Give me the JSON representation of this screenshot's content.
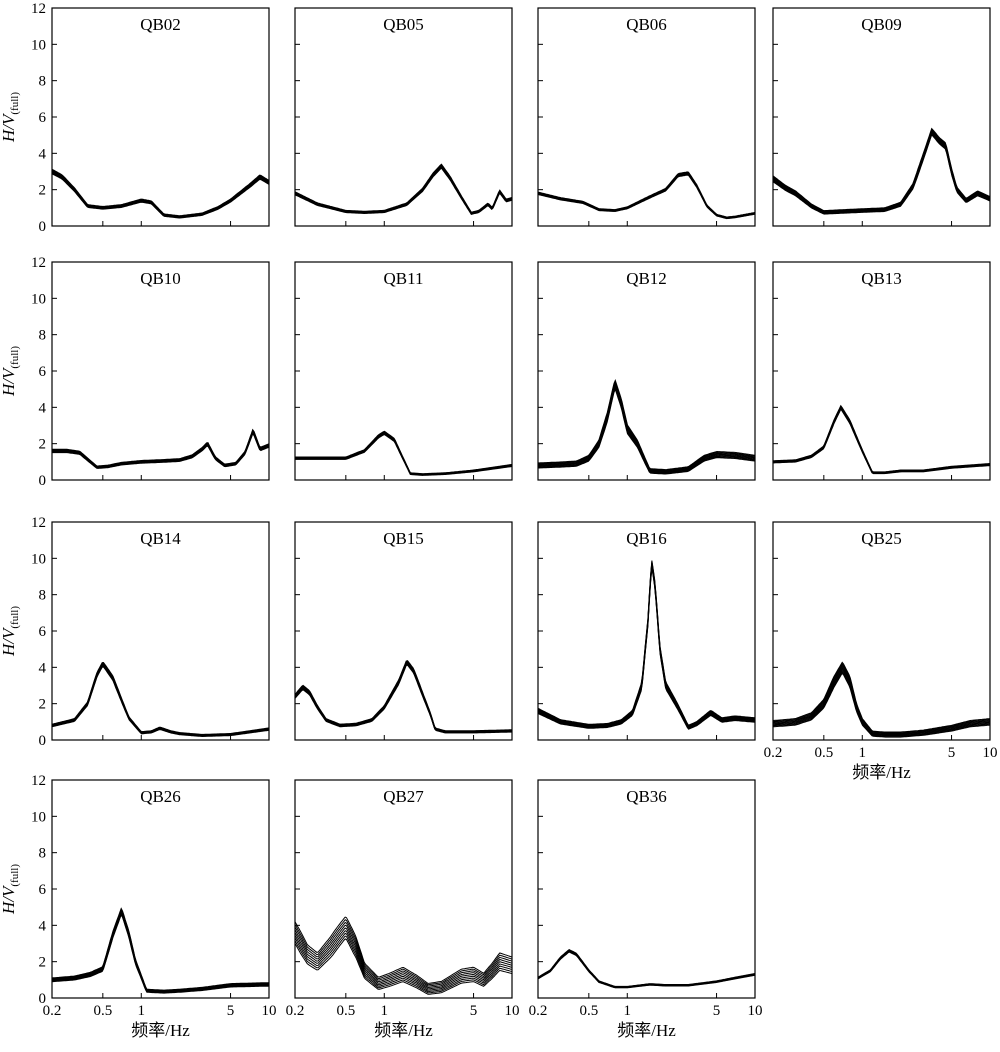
{
  "chart_data": {
    "type": "line",
    "figure": {
      "x_label": "频率/Hz",
      "y_label_main": "H/V",
      "y_label_sub": "(full)",
      "x_scale": "log",
      "xlim": [
        0.2,
        10
      ],
      "ylim": [
        0,
        12
      ],
      "x_ticks": [
        0.2,
        0.5,
        1,
        5,
        10
      ],
      "x_tick_labels": [
        "0.2",
        "0.5",
        "1",
        "5",
        "10"
      ],
      "y_ticks": [
        0,
        2,
        4,
        6,
        8,
        10,
        12
      ],
      "y_tick_labels": [
        "0",
        "2",
        "4",
        "6",
        "8",
        "10",
        "12"
      ],
      "grid": false
    },
    "panels": [
      {
        "name": "QB02",
        "curve": [
          [
            0.2,
            3.0
          ],
          [
            0.24,
            2.7
          ],
          [
            0.3,
            2.0
          ],
          [
            0.38,
            1.1
          ],
          [
            0.5,
            1.0
          ],
          [
            0.7,
            1.1
          ],
          [
            1.0,
            1.4
          ],
          [
            1.2,
            1.3
          ],
          [
            1.5,
            0.6
          ],
          [
            2.0,
            0.5
          ],
          [
            3.0,
            0.65
          ],
          [
            4.0,
            1.0
          ],
          [
            5.0,
            1.4
          ],
          [
            7.0,
            2.2
          ],
          [
            8.5,
            2.7
          ],
          [
            10,
            2.4
          ]
        ],
        "spread": 0.25
      },
      {
        "name": "QB05",
        "curve": [
          [
            0.2,
            1.8
          ],
          [
            0.3,
            1.2
          ],
          [
            0.5,
            0.8
          ],
          [
            0.7,
            0.75
          ],
          [
            1.0,
            0.8
          ],
          [
            1.5,
            1.2
          ],
          [
            2.0,
            2.0
          ],
          [
            2.4,
            2.8
          ],
          [
            2.8,
            3.3
          ],
          [
            3.3,
            2.6
          ],
          [
            4.0,
            1.6
          ],
          [
            4.8,
            0.7
          ],
          [
            5.5,
            0.8
          ],
          [
            6.5,
            1.2
          ],
          [
            7.0,
            0.95
          ],
          [
            8.0,
            1.9
          ],
          [
            9.0,
            1.4
          ],
          [
            10,
            1.5
          ]
        ],
        "spread": 0.22
      },
      {
        "name": "QB06",
        "curve": [
          [
            0.2,
            1.8
          ],
          [
            0.3,
            1.5
          ],
          [
            0.45,
            1.3
          ],
          [
            0.6,
            0.9
          ],
          [
            0.8,
            0.85
          ],
          [
            1.0,
            1.0
          ],
          [
            1.5,
            1.6
          ],
          [
            2.0,
            2.0
          ],
          [
            2.5,
            2.8
          ],
          [
            3.0,
            2.9
          ],
          [
            3.5,
            2.2
          ],
          [
            4.2,
            1.1
          ],
          [
            5.0,
            0.6
          ],
          [
            6.0,
            0.45
          ],
          [
            7.0,
            0.5
          ],
          [
            10,
            0.7
          ]
        ],
        "spread": 0.18
      },
      {
        "name": "QB09",
        "curve": [
          [
            0.2,
            2.6
          ],
          [
            0.25,
            2.1
          ],
          [
            0.3,
            1.8
          ],
          [
            0.4,
            1.1
          ],
          [
            0.5,
            0.75
          ],
          [
            0.7,
            0.8
          ],
          [
            1.0,
            0.85
          ],
          [
            1.5,
            0.9
          ],
          [
            2.0,
            1.2
          ],
          [
            2.5,
            2.2
          ],
          [
            3.0,
            3.8
          ],
          [
            3.5,
            5.2
          ],
          [
            4.0,
            4.7
          ],
          [
            4.5,
            4.4
          ],
          [
            5.0,
            3.0
          ],
          [
            5.5,
            2.0
          ],
          [
            6.5,
            1.4
          ],
          [
            8.0,
            1.8
          ],
          [
            10,
            1.5
          ]
        ],
        "spread": 0.35
      },
      {
        "name": "QB10",
        "curve": [
          [
            0.2,
            1.6
          ],
          [
            0.26,
            1.6
          ],
          [
            0.33,
            1.5
          ],
          [
            0.4,
            1.0
          ],
          [
            0.45,
            0.7
          ],
          [
            0.55,
            0.75
          ],
          [
            0.7,
            0.9
          ],
          [
            1.0,
            1.0
          ],
          [
            1.5,
            1.05
          ],
          [
            2.0,
            1.1
          ],
          [
            2.5,
            1.3
          ],
          [
            3.0,
            1.7
          ],
          [
            3.3,
            2.0
          ],
          [
            3.8,
            1.2
          ],
          [
            4.5,
            0.8
          ],
          [
            5.5,
            0.9
          ],
          [
            6.5,
            1.5
          ],
          [
            7.5,
            2.7
          ],
          [
            8.5,
            1.7
          ],
          [
            10,
            1.9
          ]
        ],
        "spread": 0.25
      },
      {
        "name": "QB11",
        "curve": [
          [
            0.2,
            1.2
          ],
          [
            0.3,
            1.2
          ],
          [
            0.5,
            1.2
          ],
          [
            0.7,
            1.6
          ],
          [
            0.9,
            2.4
          ],
          [
            1.0,
            2.6
          ],
          [
            1.2,
            2.2
          ],
          [
            1.4,
            1.2
          ],
          [
            1.6,
            0.35
          ],
          [
            2.0,
            0.3
          ],
          [
            3.0,
            0.35
          ],
          [
            5.0,
            0.5
          ],
          [
            10,
            0.8
          ]
        ],
        "spread": 0.2
      },
      {
        "name": "QB12",
        "curve": [
          [
            0.2,
            0.8
          ],
          [
            0.3,
            0.85
          ],
          [
            0.4,
            0.9
          ],
          [
            0.5,
            1.2
          ],
          [
            0.6,
            2.0
          ],
          [
            0.7,
            3.5
          ],
          [
            0.8,
            5.3
          ],
          [
            0.9,
            4.2
          ],
          [
            1.0,
            2.8
          ],
          [
            1.2,
            2.0
          ],
          [
            1.35,
            1.2
          ],
          [
            1.5,
            0.5
          ],
          [
            2.0,
            0.45
          ],
          [
            3.0,
            0.6
          ],
          [
            4.0,
            1.2
          ],
          [
            5.0,
            1.4
          ],
          [
            7.0,
            1.35
          ],
          [
            10,
            1.2
          ]
        ],
        "spread": 0.5
      },
      {
        "name": "QB13",
        "curve": [
          [
            0.2,
            1.0
          ],
          [
            0.3,
            1.05
          ],
          [
            0.4,
            1.3
          ],
          [
            0.5,
            1.8
          ],
          [
            0.6,
            3.2
          ],
          [
            0.68,
            4.0
          ],
          [
            0.8,
            3.2
          ],
          [
            1.0,
            1.6
          ],
          [
            1.2,
            0.4
          ],
          [
            1.5,
            0.4
          ],
          [
            2.0,
            0.5
          ],
          [
            3.0,
            0.5
          ],
          [
            5.0,
            0.7
          ],
          [
            10,
            0.85
          ]
        ],
        "spread": 0.2
      },
      {
        "name": "QB14",
        "curve": [
          [
            0.2,
            0.8
          ],
          [
            0.3,
            1.1
          ],
          [
            0.38,
            2.0
          ],
          [
            0.45,
            3.6
          ],
          [
            0.5,
            4.2
          ],
          [
            0.6,
            3.4
          ],
          [
            0.7,
            2.2
          ],
          [
            0.8,
            1.2
          ],
          [
            1.0,
            0.4
          ],
          [
            1.2,
            0.45
          ],
          [
            1.4,
            0.65
          ],
          [
            1.7,
            0.45
          ],
          [
            2.0,
            0.35
          ],
          [
            3.0,
            0.25
          ],
          [
            5.0,
            0.3
          ],
          [
            10,
            0.6
          ]
        ],
        "spread": 0.25
      },
      {
        "name": "QB15",
        "curve": [
          [
            0.2,
            2.4
          ],
          [
            0.23,
            2.9
          ],
          [
            0.26,
            2.6
          ],
          [
            0.3,
            1.8
          ],
          [
            0.35,
            1.1
          ],
          [
            0.45,
            0.8
          ],
          [
            0.6,
            0.85
          ],
          [
            0.8,
            1.1
          ],
          [
            1.0,
            1.8
          ],
          [
            1.3,
            3.2
          ],
          [
            1.5,
            4.3
          ],
          [
            1.7,
            3.8
          ],
          [
            2.0,
            2.5
          ],
          [
            2.3,
            1.4
          ],
          [
            2.5,
            0.6
          ],
          [
            3.0,
            0.45
          ],
          [
            5.0,
            0.45
          ],
          [
            10,
            0.5
          ]
        ],
        "spread": 0.25
      },
      {
        "name": "QB16",
        "curve": [
          [
            0.2,
            1.6
          ],
          [
            0.3,
            1.0
          ],
          [
            0.5,
            0.75
          ],
          [
            0.7,
            0.8
          ],
          [
            0.9,
            1.0
          ],
          [
            1.1,
            1.5
          ],
          [
            1.3,
            3.0
          ],
          [
            1.45,
            6.5
          ],
          [
            1.55,
            9.8
          ],
          [
            1.65,
            8.5
          ],
          [
            1.8,
            5.0
          ],
          [
            2.0,
            3.0
          ],
          [
            2.5,
            1.8
          ],
          [
            3.0,
            0.7
          ],
          [
            3.5,
            0.9
          ],
          [
            4.5,
            1.5
          ],
          [
            5.5,
            1.1
          ],
          [
            7.0,
            1.2
          ],
          [
            10,
            1.1
          ]
        ],
        "spread": 0.4
      },
      {
        "name": "QB25",
        "curve": [
          [
            0.2,
            0.9
          ],
          [
            0.25,
            0.95
          ],
          [
            0.3,
            1.0
          ],
          [
            0.4,
            1.3
          ],
          [
            0.5,
            2.0
          ],
          [
            0.6,
            3.2
          ],
          [
            0.7,
            4.0
          ],
          [
            0.8,
            3.2
          ],
          [
            0.9,
            1.8
          ],
          [
            1.0,
            1.0
          ],
          [
            1.2,
            0.35
          ],
          [
            1.5,
            0.3
          ],
          [
            2.0,
            0.3
          ],
          [
            3.0,
            0.4
          ],
          [
            5.0,
            0.65
          ],
          [
            7.0,
            0.9
          ],
          [
            10,
            1.0
          ]
        ],
        "spread": 0.6
      },
      {
        "name": "QB26",
        "curve": [
          [
            0.2,
            1.0
          ],
          [
            0.3,
            1.1
          ],
          [
            0.4,
            1.3
          ],
          [
            0.5,
            1.6
          ],
          [
            0.6,
            3.5
          ],
          [
            0.7,
            4.8
          ],
          [
            0.8,
            3.5
          ],
          [
            0.9,
            2.0
          ],
          [
            1.1,
            0.4
          ],
          [
            1.5,
            0.35
          ],
          [
            2.0,
            0.4
          ],
          [
            3.0,
            0.5
          ],
          [
            5.0,
            0.7
          ],
          [
            10,
            0.75
          ]
        ],
        "spread": 0.35
      },
      {
        "name": "QB27",
        "curve": [
          [
            0.2,
            3.6
          ],
          [
            0.25,
            2.4
          ],
          [
            0.3,
            2.0
          ],
          [
            0.38,
            2.8
          ],
          [
            0.45,
            3.5
          ],
          [
            0.5,
            3.9
          ],
          [
            0.6,
            2.8
          ],
          [
            0.7,
            1.5
          ],
          [
            0.9,
            0.8
          ],
          [
            1.1,
            1.0
          ],
          [
            1.4,
            1.3
          ],
          [
            1.8,
            0.9
          ],
          [
            2.2,
            0.5
          ],
          [
            2.8,
            0.6
          ],
          [
            4.0,
            1.2
          ],
          [
            5.0,
            1.3
          ],
          [
            6.0,
            1.0
          ],
          [
            7.0,
            1.5
          ],
          [
            8.0,
            2.0
          ],
          [
            10,
            1.8
          ]
        ],
        "spread": 1.2
      },
      {
        "name": "QB36",
        "curve": [
          [
            0.2,
            1.1
          ],
          [
            0.25,
            1.5
          ],
          [
            0.3,
            2.2
          ],
          [
            0.35,
            2.6
          ],
          [
            0.4,
            2.4
          ],
          [
            0.5,
            1.5
          ],
          [
            0.6,
            0.9
          ],
          [
            0.8,
            0.6
          ],
          [
            1.0,
            0.6
          ],
          [
            1.5,
            0.75
          ],
          [
            2.0,
            0.7
          ],
          [
            3.0,
            0.7
          ],
          [
            5.0,
            0.9
          ],
          [
            7.0,
            1.1
          ],
          [
            10,
            1.3
          ]
        ],
        "spread": 0.15
      }
    ]
  }
}
